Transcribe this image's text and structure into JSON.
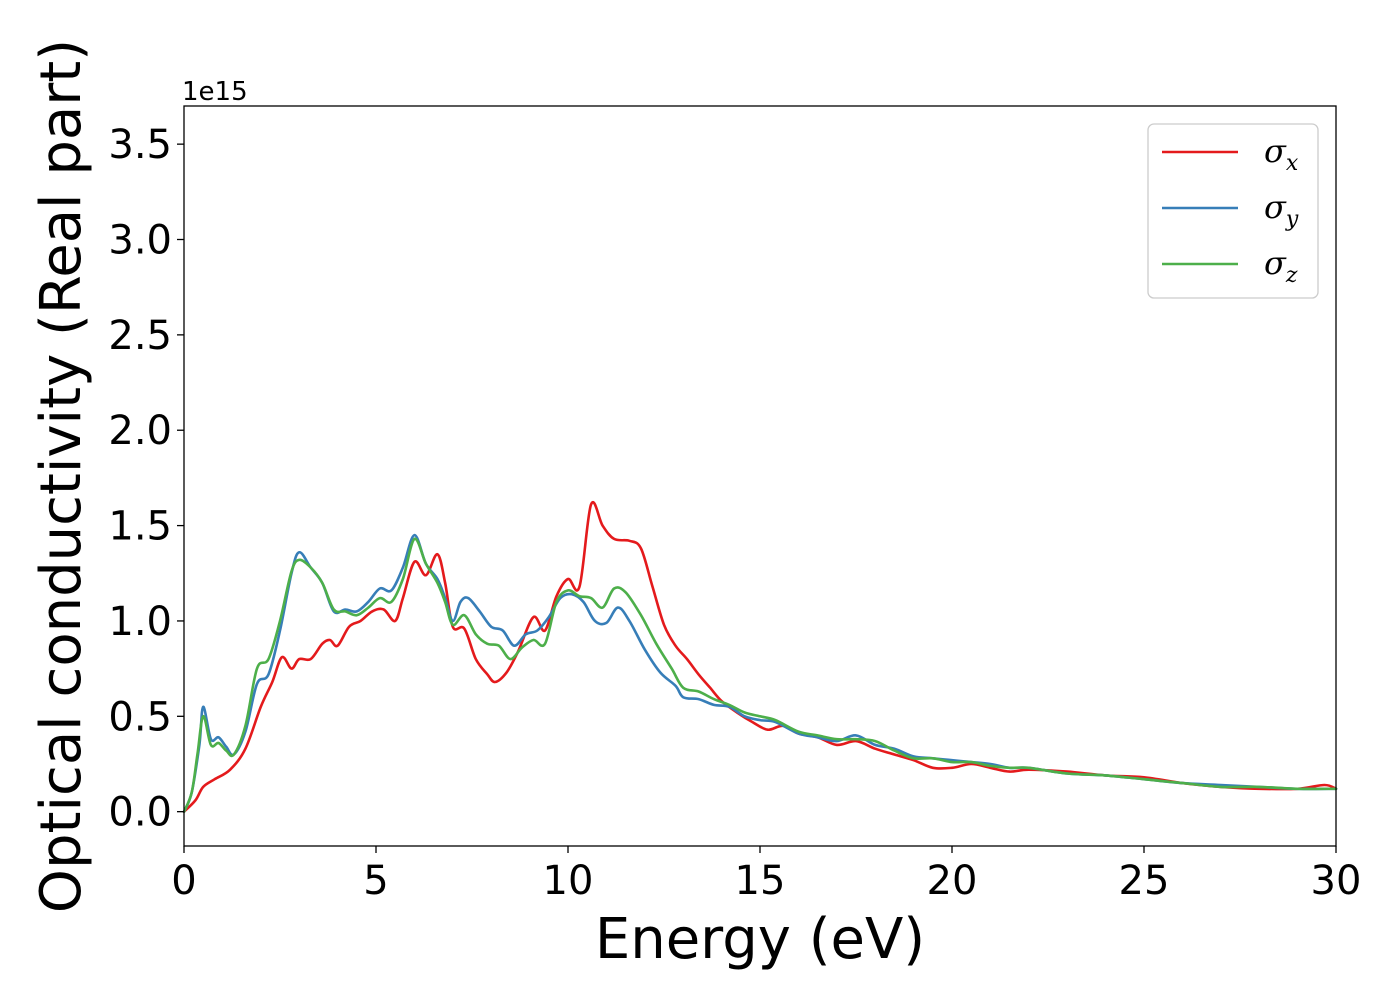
{
  "chart_data": {
    "type": "line",
    "xlabel": "Energy (eV)",
    "ylabel": "Optical conductivity (Real part)",
    "y_offset_label": "1e15",
    "xlim": [
      0,
      30
    ],
    "ylim": [
      -0.18,
      3.7
    ],
    "x_ticks": [
      0,
      5,
      10,
      15,
      20,
      25,
      30
    ],
    "x_tick_labels": [
      "0",
      "5",
      "10",
      "15",
      "20",
      "25",
      "30"
    ],
    "y_ticks": [
      0.0,
      0.5,
      1.0,
      1.5,
      2.0,
      2.5,
      3.0,
      3.5
    ],
    "y_tick_labels": [
      "0.0",
      "0.5",
      "1.0",
      "1.5",
      "2.0",
      "2.5",
      "3.0",
      "3.5"
    ],
    "grid": false,
    "legend_position": "top-right",
    "series": [
      {
        "name": "σx",
        "symbol": "σ",
        "subscript": "x",
        "color": "#e41a1c",
        "points": [
          [
            0,
            0
          ],
          [
            0.3,
            0.06
          ],
          [
            0.5,
            0.13
          ],
          [
            0.8,
            0.17
          ],
          [
            1.2,
            0.22
          ],
          [
            1.6,
            0.33
          ],
          [
            2.0,
            0.55
          ],
          [
            2.3,
            0.68
          ],
          [
            2.55,
            0.81
          ],
          [
            2.8,
            0.75
          ],
          [
            3.0,
            0.8
          ],
          [
            3.3,
            0.8
          ],
          [
            3.6,
            0.88
          ],
          [
            3.8,
            0.9
          ],
          [
            4.0,
            0.87
          ],
          [
            4.3,
            0.97
          ],
          [
            4.6,
            1.0
          ],
          [
            4.9,
            1.05
          ],
          [
            5.2,
            1.06
          ],
          [
            5.5,
            1.0
          ],
          [
            5.7,
            1.12
          ],
          [
            6.0,
            1.31
          ],
          [
            6.3,
            1.24
          ],
          [
            6.6,
            1.35
          ],
          [
            6.8,
            1.2
          ],
          [
            7.0,
            0.97
          ],
          [
            7.3,
            0.96
          ],
          [
            7.6,
            0.8
          ],
          [
            7.9,
            0.72
          ],
          [
            8.1,
            0.68
          ],
          [
            8.4,
            0.73
          ],
          [
            8.7,
            0.84
          ],
          [
            9.1,
            1.02
          ],
          [
            9.4,
            0.95
          ],
          [
            9.7,
            1.13
          ],
          [
            10.0,
            1.22
          ],
          [
            10.3,
            1.18
          ],
          [
            10.6,
            1.61
          ],
          [
            10.9,
            1.5
          ],
          [
            11.2,
            1.43
          ],
          [
            11.6,
            1.42
          ],
          [
            11.9,
            1.38
          ],
          [
            12.2,
            1.18
          ],
          [
            12.5,
            0.98
          ],
          [
            12.8,
            0.87
          ],
          [
            13.1,
            0.8
          ],
          [
            13.4,
            0.72
          ],
          [
            13.7,
            0.65
          ],
          [
            14.0,
            0.58
          ],
          [
            14.4,
            0.52
          ],
          [
            14.8,
            0.47
          ],
          [
            15.2,
            0.43
          ],
          [
            15.6,
            0.45
          ],
          [
            16.0,
            0.41
          ],
          [
            16.5,
            0.39
          ],
          [
            17.0,
            0.35
          ],
          [
            17.5,
            0.37
          ],
          [
            18.0,
            0.33
          ],
          [
            18.5,
            0.3
          ],
          [
            19.0,
            0.27
          ],
          [
            19.5,
            0.23
          ],
          [
            20.0,
            0.23
          ],
          [
            20.5,
            0.25
          ],
          [
            21.0,
            0.23
          ],
          [
            21.5,
            0.21
          ],
          [
            22.0,
            0.22
          ],
          [
            23.0,
            0.21
          ],
          [
            24.0,
            0.19
          ],
          [
            25.0,
            0.18
          ],
          [
            26.0,
            0.15
          ],
          [
            27.0,
            0.13
          ],
          [
            28.0,
            0.12
          ],
          [
            29.0,
            0.12
          ],
          [
            29.7,
            0.14
          ],
          [
            30.0,
            0.12
          ]
        ]
      },
      {
        "name": "σy",
        "symbol": "σ",
        "subscript": "y",
        "color": "#377eb8",
        "points": [
          [
            0,
            0
          ],
          [
            0.2,
            0.1
          ],
          [
            0.4,
            0.35
          ],
          [
            0.5,
            0.55
          ],
          [
            0.7,
            0.38
          ],
          [
            0.9,
            0.39
          ],
          [
            1.1,
            0.34
          ],
          [
            1.3,
            0.3
          ],
          [
            1.6,
            0.42
          ],
          [
            1.9,
            0.67
          ],
          [
            2.2,
            0.72
          ],
          [
            2.5,
            0.95
          ],
          [
            2.8,
            1.25
          ],
          [
            3.0,
            1.36
          ],
          [
            3.3,
            1.28
          ],
          [
            3.6,
            1.2
          ],
          [
            3.9,
            1.05
          ],
          [
            4.2,
            1.06
          ],
          [
            4.5,
            1.05
          ],
          [
            4.8,
            1.1
          ],
          [
            5.1,
            1.17
          ],
          [
            5.4,
            1.16
          ],
          [
            5.7,
            1.28
          ],
          [
            6.0,
            1.45
          ],
          [
            6.3,
            1.3
          ],
          [
            6.6,
            1.22
          ],
          [
            6.8,
            1.12
          ],
          [
            7.0,
            1.0
          ],
          [
            7.2,
            1.1
          ],
          [
            7.4,
            1.12
          ],
          [
            7.7,
            1.05
          ],
          [
            8.0,
            0.97
          ],
          [
            8.3,
            0.95
          ],
          [
            8.6,
            0.87
          ],
          [
            8.9,
            0.93
          ],
          [
            9.2,
            0.95
          ],
          [
            9.5,
            1.02
          ],
          [
            9.8,
            1.12
          ],
          [
            10.1,
            1.14
          ],
          [
            10.4,
            1.1
          ],
          [
            10.7,
            1.0
          ],
          [
            11.0,
            0.99
          ],
          [
            11.3,
            1.07
          ],
          [
            11.6,
            1.0
          ],
          [
            12.0,
            0.85
          ],
          [
            12.4,
            0.73
          ],
          [
            12.8,
            0.66
          ],
          [
            13.0,
            0.6
          ],
          [
            13.4,
            0.59
          ],
          [
            13.8,
            0.56
          ],
          [
            14.2,
            0.55
          ],
          [
            14.6,
            0.5
          ],
          [
            15.0,
            0.48
          ],
          [
            15.4,
            0.47
          ],
          [
            16.0,
            0.41
          ],
          [
            16.5,
            0.39
          ],
          [
            17.0,
            0.37
          ],
          [
            17.5,
            0.4
          ],
          [
            18.0,
            0.35
          ],
          [
            18.5,
            0.33
          ],
          [
            19.0,
            0.29
          ],
          [
            19.5,
            0.28
          ],
          [
            20.0,
            0.27
          ],
          [
            20.5,
            0.26
          ],
          [
            21.0,
            0.25
          ],
          [
            21.5,
            0.23
          ],
          [
            22.0,
            0.23
          ],
          [
            23.0,
            0.2
          ],
          [
            24.0,
            0.19
          ],
          [
            25.0,
            0.17
          ],
          [
            26.0,
            0.15
          ],
          [
            27.0,
            0.14
          ],
          [
            28.0,
            0.13
          ],
          [
            29.0,
            0.12
          ],
          [
            30.0,
            0.12
          ]
        ]
      },
      {
        "name": "σz",
        "symbol": "σ",
        "subscript": "z",
        "color": "#4daf4a",
        "points": [
          [
            0,
            0
          ],
          [
            0.2,
            0.1
          ],
          [
            0.35,
            0.3
          ],
          [
            0.5,
            0.5
          ],
          [
            0.7,
            0.35
          ],
          [
            0.9,
            0.36
          ],
          [
            1.1,
            0.32
          ],
          [
            1.3,
            0.3
          ],
          [
            1.6,
            0.45
          ],
          [
            1.9,
            0.75
          ],
          [
            2.2,
            0.8
          ],
          [
            2.5,
            1.0
          ],
          [
            2.8,
            1.26
          ],
          [
            3.0,
            1.32
          ],
          [
            3.3,
            1.28
          ],
          [
            3.6,
            1.2
          ],
          [
            3.9,
            1.06
          ],
          [
            4.2,
            1.05
          ],
          [
            4.5,
            1.03
          ],
          [
            4.8,
            1.07
          ],
          [
            5.1,
            1.12
          ],
          [
            5.4,
            1.1
          ],
          [
            5.7,
            1.22
          ],
          [
            6.0,
            1.43
          ],
          [
            6.3,
            1.3
          ],
          [
            6.6,
            1.2
          ],
          [
            6.8,
            1.1
          ],
          [
            7.0,
            0.98
          ],
          [
            7.3,
            1.03
          ],
          [
            7.6,
            0.93
          ],
          [
            7.9,
            0.88
          ],
          [
            8.2,
            0.87
          ],
          [
            8.5,
            0.8
          ],
          [
            8.8,
            0.86
          ],
          [
            9.1,
            0.9
          ],
          [
            9.4,
            0.88
          ],
          [
            9.7,
            1.1
          ],
          [
            10.0,
            1.16
          ],
          [
            10.3,
            1.13
          ],
          [
            10.6,
            1.12
          ],
          [
            10.9,
            1.07
          ],
          [
            11.2,
            1.17
          ],
          [
            11.5,
            1.15
          ],
          [
            11.9,
            1.03
          ],
          [
            12.3,
            0.88
          ],
          [
            12.7,
            0.75
          ],
          [
            13.0,
            0.65
          ],
          [
            13.4,
            0.63
          ],
          [
            13.8,
            0.59
          ],
          [
            14.2,
            0.56
          ],
          [
            14.6,
            0.52
          ],
          [
            15.0,
            0.5
          ],
          [
            15.4,
            0.48
          ],
          [
            16.0,
            0.42
          ],
          [
            16.5,
            0.4
          ],
          [
            17.0,
            0.38
          ],
          [
            17.5,
            0.38
          ],
          [
            18.0,
            0.37
          ],
          [
            18.5,
            0.32
          ],
          [
            19.0,
            0.28
          ],
          [
            19.5,
            0.28
          ],
          [
            20.0,
            0.26
          ],
          [
            20.5,
            0.26
          ],
          [
            21.0,
            0.24
          ],
          [
            21.5,
            0.23
          ],
          [
            22.0,
            0.23
          ],
          [
            23.0,
            0.2
          ],
          [
            24.0,
            0.19
          ],
          [
            25.0,
            0.17
          ],
          [
            26.0,
            0.15
          ],
          [
            27.0,
            0.13
          ],
          [
            28.0,
            0.13
          ],
          [
            29.0,
            0.12
          ],
          [
            30.0,
            0.12
          ]
        ]
      }
    ]
  }
}
